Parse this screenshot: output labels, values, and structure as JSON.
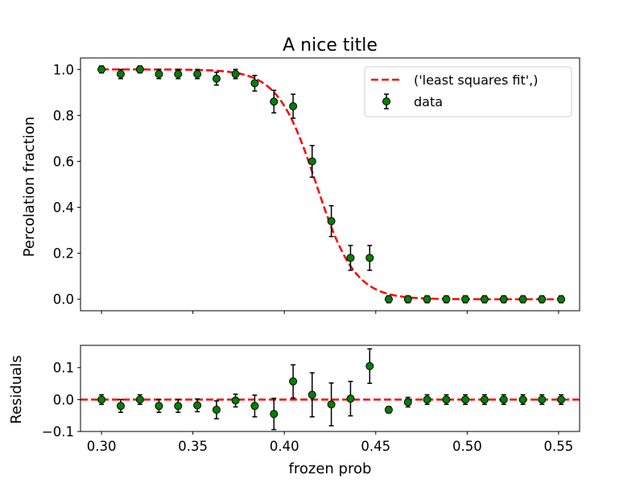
{
  "chart_data": [
    {
      "type": "scatter",
      "panel": "main",
      "title": "A nice title",
      "xlabel": "",
      "ylabel": "Percolation fraction",
      "xlim": [
        0.2885,
        0.5615
      ],
      "ylim": [
        -0.05,
        1.05
      ],
      "yticks": [
        0.0,
        0.2,
        0.4,
        0.6,
        0.8,
        1.0
      ],
      "ytick_labels": [
        "0.0",
        "0.2",
        "0.4",
        "0.6",
        "0.8",
        "1.0"
      ],
      "xticks": [
        0.3,
        0.35,
        0.4,
        0.45,
        0.5,
        0.55
      ],
      "legend_position": "top-right",
      "legend": [
        "('least squares fit',)",
        "data"
      ],
      "series": [
        {
          "name": "('least squares fit',)",
          "kind": "line",
          "style": "dashed",
          "color": "#ff0000",
          "model": "sigmoid",
          "center": 0.4175,
          "scale": 0.0105
        },
        {
          "name": "data",
          "kind": "errorbar",
          "color": "#008000",
          "edge_color": "#000000",
          "x": [
            0.3,
            0.3105,
            0.321,
            0.3314,
            0.3419,
            0.3524,
            0.3629,
            0.3733,
            0.3838,
            0.3943,
            0.4048,
            0.4152,
            0.4257,
            0.4362,
            0.4467,
            0.4571,
            0.4676,
            0.4781,
            0.4886,
            0.499,
            0.5095,
            0.52,
            0.5305,
            0.5409,
            0.5514
          ],
          "y": [
            1.0,
            0.98,
            1.0,
            0.98,
            0.98,
            0.98,
            0.96,
            0.98,
            0.94,
            0.86,
            0.84,
            0.6,
            0.34,
            0.18,
            0.18,
            0.0,
            0.0,
            0.0,
            0.0,
            0.0,
            0.0,
            0.0,
            0.0,
            0.0,
            0.0
          ],
          "yerr": [
            0.015,
            0.02,
            0.015,
            0.02,
            0.02,
            0.02,
            0.028,
            0.02,
            0.034,
            0.049,
            0.052,
            0.069,
            0.067,
            0.054,
            0.054,
            0.015,
            0.015,
            0.015,
            0.015,
            0.015,
            0.015,
            0.015,
            0.015,
            0.015,
            0.015
          ]
        }
      ]
    },
    {
      "type": "scatter",
      "panel": "residuals",
      "title": "",
      "xlabel": "frozen prob",
      "ylabel": "Residuals",
      "xlim": [
        0.2885,
        0.5615
      ],
      "ylim": [
        -0.1,
        0.17
      ],
      "yticks": [
        -0.1,
        0.0,
        0.1
      ],
      "ytick_labels": [
        "−0.1",
        "0.0",
        "0.1"
      ],
      "xticks": [
        0.3,
        0.35,
        0.4,
        0.45,
        0.5,
        0.55
      ],
      "xtick_labels": [
        "0.30",
        "0.35",
        "0.40",
        "0.45",
        "0.50",
        "0.55"
      ],
      "series": [
        {
          "name": "",
          "kind": "hline",
          "style": "dashed",
          "color": "#ff0000",
          "y": 0.0
        },
        {
          "name": "",
          "kind": "errorbar",
          "color": "#008000",
          "edge_color": "#000000",
          "x": [
            0.3,
            0.3105,
            0.321,
            0.3314,
            0.3419,
            0.3524,
            0.3629,
            0.3733,
            0.3838,
            0.3943,
            0.4048,
            0.4152,
            0.4257,
            0.4362,
            0.4467,
            0.4571,
            0.4676,
            0.4781,
            0.4886,
            0.499,
            0.5095,
            0.52,
            0.5305,
            0.5409,
            0.5514
          ],
          "y": [
            0.0,
            -0.02,
            0.0,
            -0.02,
            -0.02,
            -0.018,
            -0.032,
            -0.003,
            -0.02,
            -0.045,
            0.057,
            0.015,
            -0.015,
            0.003,
            0.105,
            -0.032,
            -0.008,
            0.0,
            0.0,
            0.0,
            0.0,
            0.0,
            0.0,
            0.0,
            0.0
          ],
          "yerr": [
            0.015,
            0.02,
            0.015,
            0.02,
            0.02,
            0.02,
            0.028,
            0.02,
            0.034,
            0.049,
            0.052,
            0.069,
            0.067,
            0.054,
            0.054,
            0.01,
            0.015,
            0.015,
            0.015,
            0.015,
            0.015,
            0.015,
            0.015,
            0.015,
            0.015
          ]
        }
      ]
    }
  ]
}
